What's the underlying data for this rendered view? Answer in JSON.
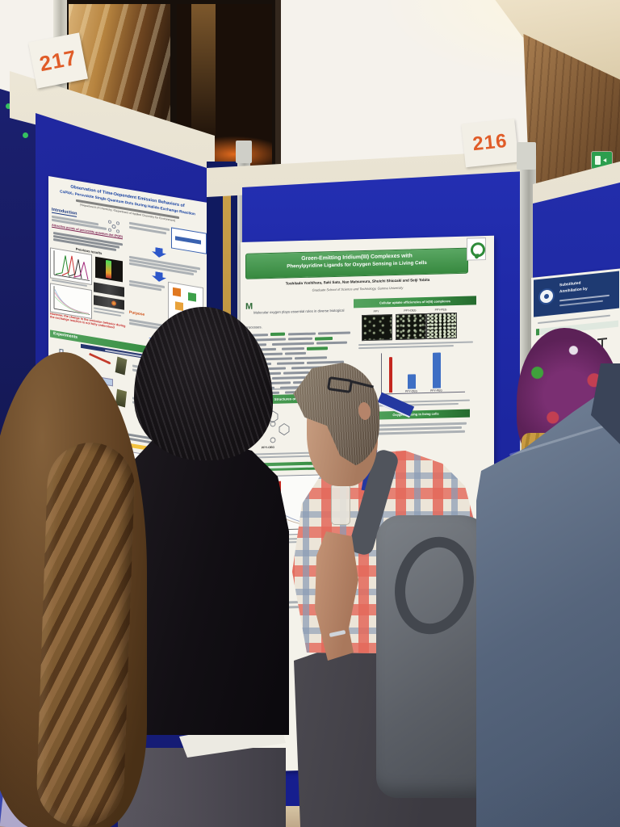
{
  "board_labels": {
    "left_board": "217",
    "center_board": "216"
  },
  "posters": {
    "left": {
      "title_line1": "Observation of Time-Dependent Emission Behaviors of",
      "title_line2": "CsPbX₃ Perovskite Single Quantum Dots During Halide-Exchange Reaction",
      "affiliation": "(¹Department of Chemistry, ²Department of Applied Chemistry for Environment)",
      "sections": {
        "introduction": "Introduction",
        "attractive": "Attractive points of perovskite quantum dot (PQD)",
        "previous": "Previous results",
        "purpose": "Purpose",
        "experiments": "Experiments",
        "results": "Results & Discussion"
      },
      "note": "However, the change in the emission behavior during the exchange reaction is not fully understood"
    },
    "center": {
      "title_line1": "Green-Emitting Iridium(III) Complexes with",
      "title_line2": "Phenylpyridine Ligands for Oxygen Sensing in Living Cells",
      "authors": "Toshitada Yoshihara, Saki Sato, Nao Matsumura, Shuichi Shiozaki and Seiji Tobita",
      "affiliation": "Graduate School of Science and Technology, Gunma University",
      "intro_lead": "Molecular oxygen plays essential roles in diverse biological processes.",
      "sections": {
        "structures": "Structures of Ir(III) complexes",
        "uptake": "Cellular uptake efficiencies of Ir(III) complexes",
        "sensing": "Oxygen sensing in living cells"
      },
      "microscopy_labels": [
        "PPY",
        "PPY-OEG",
        "PPY-PEG"
      ],
      "structure_labels": [
        "PPY-OEG",
        "PPY-PEG"
      ]
    },
    "right": {
      "title_line1": "Substituted",
      "title_line2": "Annihilation by"
    }
  },
  "center_chart": {
    "type": "bar",
    "bars": [
      {
        "label": "",
        "color": "#c4271f",
        "h": 1.0,
        "w": 4
      },
      {
        "label": "PPY-OEG",
        "color": "#3e6fc4",
        "h": 0.42,
        "w": 10
      },
      {
        "label": "PPY-PEG",
        "color": "#3e6fc4",
        "h": 1.0,
        "w": 10
      }
    ]
  },
  "colors": {
    "board-blue": "#1f2aa8",
    "board-blue-left": "#1b2292",
    "board-blue-dark": "#141a6e",
    "banner-green": "#3c9247",
    "title-green-1": "#5aa763",
    "title-green-2": "#37893f",
    "label-orange": "#e05c28",
    "exit-green": "#2c9e4e",
    "note-red": "#c42222",
    "gold": "#b98f3e",
    "poster-paper": "#f4f2ea",
    "rail-cream": "#e9e4d4"
  }
}
